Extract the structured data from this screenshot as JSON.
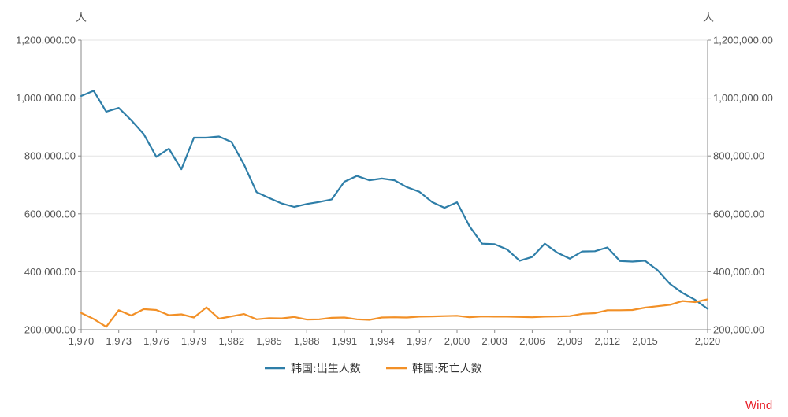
{
  "chart_data": {
    "type": "line",
    "y_unit_left": "人",
    "y_unit_right": "人",
    "ylim": [
      200000,
      1200000
    ],
    "y_ticks": [
      200000,
      400000,
      600000,
      800000,
      1000000,
      1200000
    ],
    "y_tick_labels": [
      "200,000.00",
      "400,000.00",
      "600,000.00",
      "800,000.00",
      "1,000,000.00",
      "1,200,000.00"
    ],
    "xlim": [
      1970,
      2020
    ],
    "x_ticks": [
      1970,
      1973,
      1976,
      1979,
      1982,
      1985,
      1988,
      1991,
      1994,
      1997,
      2000,
      2003,
      2006,
      2009,
      2012,
      2015,
      2020
    ],
    "x_tick_labels": [
      "1,970",
      "1,973",
      "1,976",
      "1,979",
      "1,982",
      "1,985",
      "1,988",
      "1,991",
      "1,994",
      "1,997",
      "2,000",
      "2,003",
      "2,006",
      "2,009",
      "2,012",
      "2,015",
      "2,020"
    ],
    "x": [
      1970,
      1971,
      1972,
      1973,
      1974,
      1975,
      1976,
      1977,
      1978,
      1979,
      1980,
      1981,
      1982,
      1983,
      1984,
      1985,
      1986,
      1987,
      1988,
      1989,
      1990,
      1991,
      1992,
      1993,
      1994,
      1995,
      1996,
      1997,
      1998,
      1999,
      2000,
      2001,
      2002,
      2003,
      2004,
      2005,
      2006,
      2007,
      2008,
      2009,
      2010,
      2011,
      2012,
      2013,
      2014,
      2015,
      2016,
      2017,
      2018,
      2019,
      2020
    ],
    "series": [
      {
        "name": "韩国:出生人数",
        "color": "#2e7ea8",
        "values": [
          1007000,
          1025000,
          953000,
          966000,
          923000,
          875000,
          797000,
          825000,
          754000,
          863000,
          863000,
          867000,
          848000,
          770000,
          675000,
          655000,
          636000,
          624000,
          634000,
          641000,
          650000,
          711000,
          731000,
          716000,
          722000,
          716000,
          692000,
          676000,
          641000,
          621000,
          640000,
          557000,
          497000,
          495000,
          477000,
          438000,
          451000,
          497000,
          466000,
          445000,
          470000,
          471000,
          484000,
          437000,
          435000,
          438000,
          406000,
          358000,
          327000,
          303000,
          272000
        ]
      },
      {
        "name": "韩国:死亡人数",
        "color": "#f29027",
        "values": [
          258000,
          237000,
          210000,
          267000,
          249000,
          271000,
          268000,
          250000,
          253000,
          242000,
          277000,
          238000,
          246000,
          254000,
          236000,
          240000,
          239000,
          244000,
          235000,
          236000,
          241000,
          242000,
          236000,
          234000,
          242000,
          243000,
          242000,
          245000,
          246000,
          247000,
          248000,
          243000,
          246000,
          245000,
          245000,
          244000,
          243000,
          245000,
          246000,
          247000,
          255000,
          257000,
          267000,
          267000,
          268000,
          276000,
          281000,
          286000,
          299000,
          295000,
          305000
        ]
      }
    ],
    "legend_position": "bottom-center",
    "grid": true,
    "source": "Wind"
  }
}
